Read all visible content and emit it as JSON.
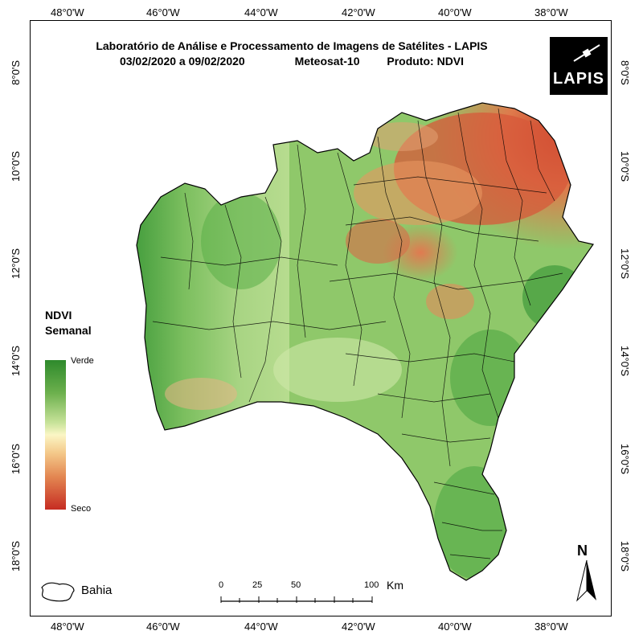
{
  "title": {
    "line1": "Laboratório de Análise e Processamento de Imagens de Satélites - LAPIS",
    "dates": "03/02/2020  a 09/02/2020",
    "satellite": "Meteosat-10",
    "product": "Produto: NDVI"
  },
  "logo_text": "LAPIS",
  "longitude_labels": [
    "48°0'W",
    "46°0'W",
    "44°0'W",
    "42°0'W",
    "40°0'W",
    "38°0'W"
  ],
  "latitude_labels": [
    "8°0'S",
    "10°0'S",
    "12°0'S",
    "14°0'S",
    "16°0'S",
    "18°0'S"
  ],
  "legend": {
    "title_line1": "NDVI",
    "title_line2": "Semanal",
    "high_label": "Verde",
    "low_label": "Seco",
    "gradient_colors": [
      "#2e8a2c",
      "#6cb04d",
      "#c8e39a",
      "#fbf6c5",
      "#f4c98a",
      "#e38752",
      "#c62c22"
    ]
  },
  "inset_label": "Bahia",
  "scale_bar": {
    "ticks": [
      "0",
      "25",
      "50",
      "100"
    ],
    "unit": "Km"
  },
  "north_label": "N"
}
